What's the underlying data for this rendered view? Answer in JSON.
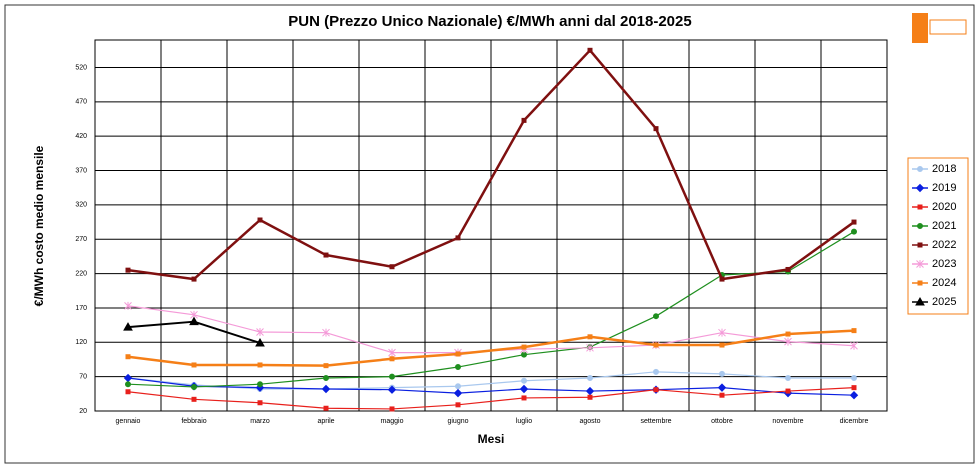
{
  "chart_data": {
    "type": "line",
    "title": "PUN (Prezzo Unico Nazionale) €/MWh anni dal 2018-2025",
    "x_label": "Mesi",
    "y_label": "€/MWh costo medio mensile",
    "categories": [
      "gennaio",
      "febbraio",
      "marzo",
      "aprile",
      "maggio",
      "giugno",
      "luglio",
      "agosto",
      "settembre",
      "ottobre",
      "novembre",
      "dicembre"
    ],
    "ylim": [
      20,
      560
    ],
    "yticks": [
      20,
      70,
      120,
      170,
      220,
      270,
      320,
      370,
      420,
      470,
      520
    ],
    "grid": true,
    "legend": "right",
    "series": [
      {
        "name": "2018",
        "color": "#a9c8ee",
        "marker": "circle",
        "values": [
          68,
          58,
          52,
          52,
          54,
          56,
          64,
          68,
          77,
          74,
          68,
          68
        ]
      },
      {
        "name": "2019",
        "color": "#0a1fe0",
        "marker": "diamond",
        "values": [
          68,
          56,
          54,
          52,
          51,
          46,
          52,
          49,
          51,
          54,
          46,
          43
        ]
      },
      {
        "name": "2020",
        "color": "#e8201c",
        "marker": "square",
        "values": [
          48,
          37,
          32,
          24,
          23,
          29,
          39,
          40,
          51,
          43,
          49,
          54
        ]
      },
      {
        "name": "2021",
        "color": "#1f8f1f",
        "marker": "circle",
        "values": [
          59,
          55,
          59,
          68,
          70,
          84,
          102,
          113,
          158,
          218,
          223,
          281
        ]
      },
      {
        "name": "2022",
        "color": "#7f1010",
        "marker": "square",
        "values": [
          225,
          212,
          298,
          247,
          230,
          272,
          443,
          545,
          431,
          212,
          226,
          295
        ]
      },
      {
        "name": "2023",
        "color": "#f49ad8",
        "marker": "star",
        "values": [
          173,
          160,
          135,
          134,
          105,
          105,
          110,
          112,
          116,
          134,
          121,
          115
        ]
      },
      {
        "name": "2024",
        "color": "#f57f17",
        "marker": "square",
        "values": [
          99,
          87,
          87,
          86,
          96,
          103,
          113,
          128,
          116,
          116,
          132,
          137
        ]
      },
      {
        "name": "2025",
        "color": "#000000",
        "marker": "triangle",
        "values": [
          142,
          150,
          119,
          null,
          null,
          null,
          null,
          null,
          null,
          null,
          null,
          null
        ]
      }
    ]
  }
}
